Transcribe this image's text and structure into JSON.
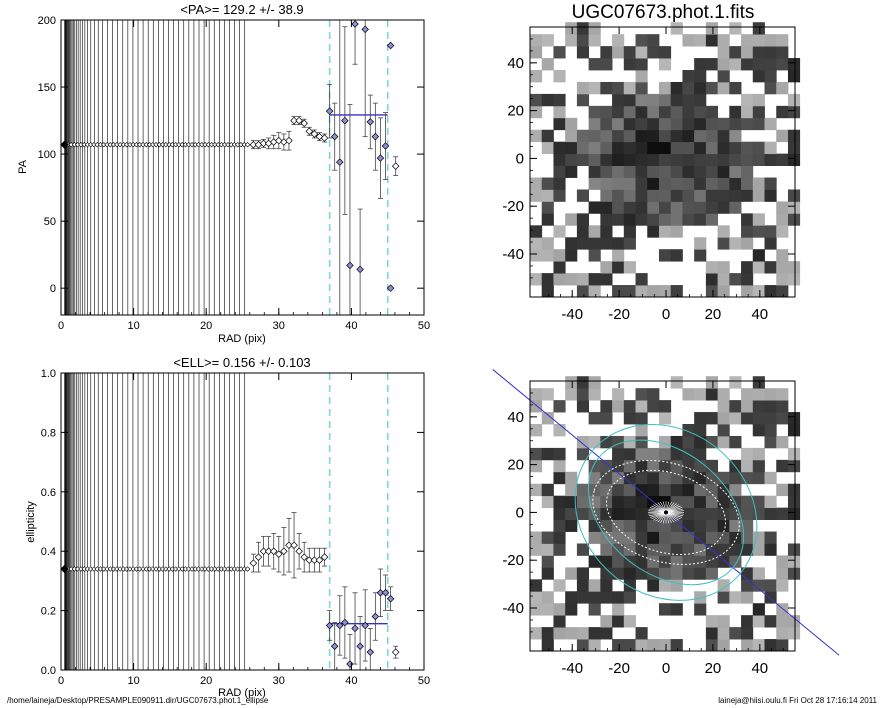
{
  "footer": {
    "left": "/home/laineja/Desktop/PRESAMPLE090911.dir/UGC07673.phot.1_ellipse",
    "right": "laineja@hiisi.oulu.fi  Fri Oct 28 17:16:14 2011"
  },
  "colors": {
    "mean_line": "#3333cc",
    "limit_line": "#7fd4d4",
    "ellipse": "#40c0c0",
    "pa_line": "#3333cc"
  },
  "chart_data": [
    {
      "type": "scatter",
      "title": "<PA>= 129.2 +/-  38.9",
      "xlabel": "RAD (pix)",
      "ylabel": "PA",
      "xlim": [
        0,
        50
      ],
      "ylim": [
        -20,
        200
      ],
      "xticks": [
        "0",
        "10",
        "20",
        "30",
        "40",
        "50"
      ],
      "yticks": [
        "0",
        "50",
        "100",
        "150",
        "200"
      ],
      "xtick_values": [
        0,
        10,
        20,
        30,
        40,
        50
      ],
      "ytick_values": [
        0,
        50,
        100,
        150,
        200
      ],
      "vlines": [
        37,
        45
      ],
      "mean": {
        "value": 129.2,
        "x_range": [
          37,
          45
        ]
      },
      "inner_points": {
        "x_start": 0.5,
        "x_end": 26,
        "y": 107
      },
      "points": [
        {
          "x": 26.5,
          "y": 107,
          "err": 3
        },
        {
          "x": 27.2,
          "y": 107,
          "err": 3
        },
        {
          "x": 27.9,
          "y": 108,
          "err": 3
        },
        {
          "x": 28.6,
          "y": 108,
          "err": 4
        },
        {
          "x": 29.3,
          "y": 109,
          "err": 5
        },
        {
          "x": 30.0,
          "y": 110,
          "err": 6
        },
        {
          "x": 30.7,
          "y": 109,
          "err": 6
        },
        {
          "x": 31.4,
          "y": 110,
          "err": 7
        },
        {
          "x": 32.1,
          "y": 125,
          "err": 3
        },
        {
          "x": 32.8,
          "y": 125,
          "err": 3
        },
        {
          "x": 33.5,
          "y": 123,
          "err": 3
        },
        {
          "x": 34.2,
          "y": 117,
          "err": 3
        },
        {
          "x": 34.9,
          "y": 115,
          "err": 3
        },
        {
          "x": 35.6,
          "y": 113,
          "err": 3
        },
        {
          "x": 36.3,
          "y": 112,
          "err": 3
        },
        {
          "x": 37.0,
          "y": 132,
          "err": 20
        },
        {
          "x": 37.7,
          "y": 113,
          "err": 25
        },
        {
          "x": 38.4,
          "y": 94,
          "err": 120
        },
        {
          "x": 39.1,
          "y": 125,
          "err": 70
        },
        {
          "x": 39.8,
          "y": 17,
          "err": 120
        },
        {
          "x": 40.5,
          "y": 197,
          "err": 30
        },
        {
          "x": 41.2,
          "y": 14,
          "err": 45
        },
        {
          "x": 41.9,
          "y": 193,
          "err": 80
        },
        {
          "x": 42.6,
          "y": 124,
          "err": 20
        },
        {
          "x": 43.3,
          "y": 113,
          "err": 25
        },
        {
          "x": 44.0,
          "y": 97,
          "err": 30
        },
        {
          "x": 44.7,
          "y": 106,
          "err": 25
        },
        {
          "x": 45.4,
          "y": 181,
          "err": 0
        },
        {
          "x": 45.4,
          "y": 0,
          "err": 0
        },
        {
          "x": 46.1,
          "y": 91,
          "err": 7
        }
      ]
    },
    {
      "type": "scatter",
      "title": "<ELL>= 0.156 +/-  0.103",
      "xlabel": "RAD (pix)",
      "ylabel": "ellipticity",
      "xlim": [
        0,
        50
      ],
      "ylim": [
        0,
        1
      ],
      "xticks": [
        "0",
        "10",
        "20",
        "30",
        "40",
        "50"
      ],
      "yticks": [
        "0.0",
        "0.2",
        "0.4",
        "0.6",
        "0.8",
        "1.0"
      ],
      "xtick_values": [
        0,
        10,
        20,
        30,
        40,
        50
      ],
      "ytick_values": [
        0,
        0.2,
        0.4,
        0.6,
        0.8,
        1.0
      ],
      "vlines": [
        37,
        45
      ],
      "mean": {
        "value": 0.156,
        "x_range": [
          37,
          45
        ]
      },
      "inner_points": {
        "x_start": 0.5,
        "x_end": 26,
        "y": 0.34
      },
      "points": [
        {
          "x": 26.5,
          "y": 0.36,
          "err": 0.03
        },
        {
          "x": 27.2,
          "y": 0.38,
          "err": 0.05
        },
        {
          "x": 27.9,
          "y": 0.4,
          "err": 0.05
        },
        {
          "x": 28.6,
          "y": 0.4,
          "err": 0.05
        },
        {
          "x": 29.3,
          "y": 0.4,
          "err": 0.06
        },
        {
          "x": 30.0,
          "y": 0.39,
          "err": 0.06
        },
        {
          "x": 30.7,
          "y": 0.4,
          "err": 0.08
        },
        {
          "x": 31.4,
          "y": 0.42,
          "err": 0.09
        },
        {
          "x": 32.1,
          "y": 0.42,
          "err": 0.11
        },
        {
          "x": 32.8,
          "y": 0.4,
          "err": 0.06
        },
        {
          "x": 33.5,
          "y": 0.38,
          "err": 0.05
        },
        {
          "x": 34.2,
          "y": 0.37,
          "err": 0.04
        },
        {
          "x": 34.9,
          "y": 0.37,
          "err": 0.04
        },
        {
          "x": 35.6,
          "y": 0.37,
          "err": 0.04
        },
        {
          "x": 36.3,
          "y": 0.38,
          "err": 0.03
        },
        {
          "x": 37.0,
          "y": 0.15,
          "err": 0.05
        },
        {
          "x": 37.7,
          "y": 0.08,
          "err": 0.08
        },
        {
          "x": 38.4,
          "y": 0.15,
          "err": 0.1
        },
        {
          "x": 39.1,
          "y": 0.16,
          "err": 0.12
        },
        {
          "x": 39.8,
          "y": 0.02,
          "err": 0.1
        },
        {
          "x": 40.5,
          "y": 0.14,
          "err": 0.12
        },
        {
          "x": 41.2,
          "y": 0.08,
          "err": 0.1
        },
        {
          "x": 41.9,
          "y": 0.15,
          "err": 0.12
        },
        {
          "x": 42.6,
          "y": 0.06,
          "err": 0.08
        },
        {
          "x": 43.3,
          "y": 0.18,
          "err": 0.08
        },
        {
          "x": 44.0,
          "y": 0.26,
          "err": 0.08
        },
        {
          "x": 44.7,
          "y": 0.26,
          "err": 0.06
        },
        {
          "x": 45.4,
          "y": 0.24,
          "err": 0.04
        },
        {
          "x": 46.1,
          "y": 0.06,
          "err": 0.02
        }
      ]
    },
    {
      "type": "heatmap",
      "title": "UGC07673.phot.1.fits",
      "xlim": [
        -58,
        55
      ],
      "ylim": [
        -58,
        55
      ],
      "xticks": [
        "-40",
        "-20",
        "0",
        "20",
        "40"
      ],
      "yticks": [
        "-40",
        "-20",
        "0",
        "20",
        "40"
      ],
      "xtick_values": [
        -40,
        -20,
        0,
        20,
        40
      ],
      "ytick_values": [
        -40,
        -20,
        0,
        20,
        40
      ],
      "pixel_size": 5
    },
    {
      "type": "heatmap",
      "title": "",
      "xlim": [
        -58,
        55
      ],
      "ylim": [
        -58,
        55
      ],
      "xticks": [
        "-40",
        "-20",
        "0",
        "20",
        "40"
      ],
      "yticks": [
        "-40",
        "-20",
        "0",
        "20",
        "40"
      ],
      "xtick_values": [
        -40,
        -20,
        0,
        20,
        40
      ],
      "ytick_values": [
        -40,
        -20,
        0,
        20,
        40
      ],
      "pixel_size": 5,
      "ellipses": [
        {
          "a": 41,
          "b": 35,
          "pa_deg": 129
        },
        {
          "a": 37,
          "b": 26,
          "pa_deg": 129
        },
        {
          "a": 32,
          "b": 21,
          "pa_deg": 107
        },
        {
          "a": 26,
          "b": 17,
          "pa_deg": 107
        }
      ],
      "pa_line_deg": 129
    }
  ]
}
